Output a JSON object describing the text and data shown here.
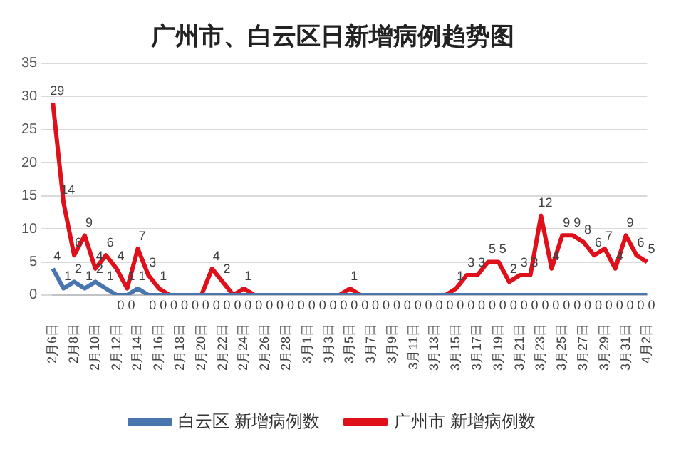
{
  "chart_data": {
    "type": "line",
    "title": "广州市、白云区日新增病例趋势图",
    "categories": [
      "2月6日",
      null,
      "2月8日",
      null,
      "2月10日",
      null,
      "2月12日",
      null,
      "2月14日",
      null,
      "2月16日",
      null,
      "2月18日",
      null,
      "2月20日",
      null,
      "2月22日",
      null,
      "2月24日",
      null,
      "2月26日",
      null,
      "2月28日",
      null,
      "3月1日",
      null,
      "3月3日",
      null,
      "3月5日",
      null,
      "3月7日",
      null,
      "3月9日",
      null,
      "3月11日",
      null,
      "3月13日",
      null,
      "3月15日",
      null,
      "3月17日",
      null,
      "3月19日",
      null,
      "3月21日",
      null,
      "3月23日",
      null,
      "3月25日",
      null,
      "3月27日",
      null,
      "3月29日",
      null,
      "3月31日",
      null,
      "4月2日"
    ],
    "series": [
      {
        "name": "白云区 新增病例数",
        "color": "#4a76b0",
        "values": [
          4,
          1,
          2,
          1,
          2,
          1,
          0,
          0,
          1,
          0,
          0,
          0,
          0,
          0,
          0,
          0,
          0,
          0,
          0,
          0,
          0,
          0,
          0,
          0,
          0,
          0,
          0,
          0,
          0,
          0,
          0,
          0,
          0,
          0,
          0,
          0,
          0,
          0,
          0,
          0,
          0,
          0,
          0,
          0,
          0,
          0,
          0,
          0,
          0,
          0,
          0,
          0,
          0,
          0,
          0,
          0,
          0
        ],
        "value_labels": [
          "4",
          "1",
          "2",
          "1",
          "2",
          "1",
          "0",
          "0",
          "1",
          "0",
          "0",
          "0",
          "0",
          "0",
          "0",
          "0",
          "0",
          "0",
          "0",
          "0",
          "0",
          "0",
          "0",
          "0",
          "0",
          "0",
          "0",
          "0",
          "0",
          "0",
          "0",
          "0",
          "0",
          "0",
          "0",
          "0",
          "0",
          "0",
          "0",
          "0",
          "0",
          "0",
          "0",
          "0",
          "0",
          "0",
          "0",
          "0",
          "0",
          "0",
          "0",
          "0",
          "0",
          "0",
          "0",
          "0",
          "0"
        ]
      },
      {
        "name": "广州市 新增病例数",
        "color": "#e0101a",
        "values": [
          29,
          14,
          6,
          9,
          4,
          6,
          4,
          1,
          7,
          3,
          1,
          0,
          0,
          0,
          0,
          4,
          2,
          0,
          1,
          0,
          0,
          0,
          0,
          0,
          0,
          0,
          0,
          0,
          1,
          0,
          0,
          0,
          0,
          0,
          0,
          0,
          0,
          0,
          1,
          3,
          3,
          5,
          5,
          2,
          3,
          3,
          12,
          4,
          9,
          9,
          8,
          6,
          7,
          4,
          9,
          6,
          5
        ],
        "value_labels": [
          "29",
          "14",
          "6",
          "9",
          "4",
          "6",
          "4",
          "1",
          "7",
          "3",
          "1",
          null,
          null,
          null,
          null,
          "4",
          "2",
          null,
          "1",
          null,
          null,
          null,
          null,
          null,
          null,
          null,
          null,
          null,
          "1",
          null,
          null,
          null,
          null,
          null,
          null,
          null,
          null,
          null,
          "1",
          "3",
          "3",
          "5",
          "5",
          "2",
          "3",
          "3",
          "12",
          "4",
          "9",
          "9",
          "8",
          "6",
          "7",
          "4",
          "9",
          "6",
          "5"
        ]
      }
    ],
    "ylim": [
      0,
      35
    ],
    "yticks": [
      0,
      5,
      10,
      15,
      20,
      25,
      30,
      35
    ],
    "grid": "y",
    "legend": "bottom",
    "marker": "none",
    "line_style": "solid"
  }
}
